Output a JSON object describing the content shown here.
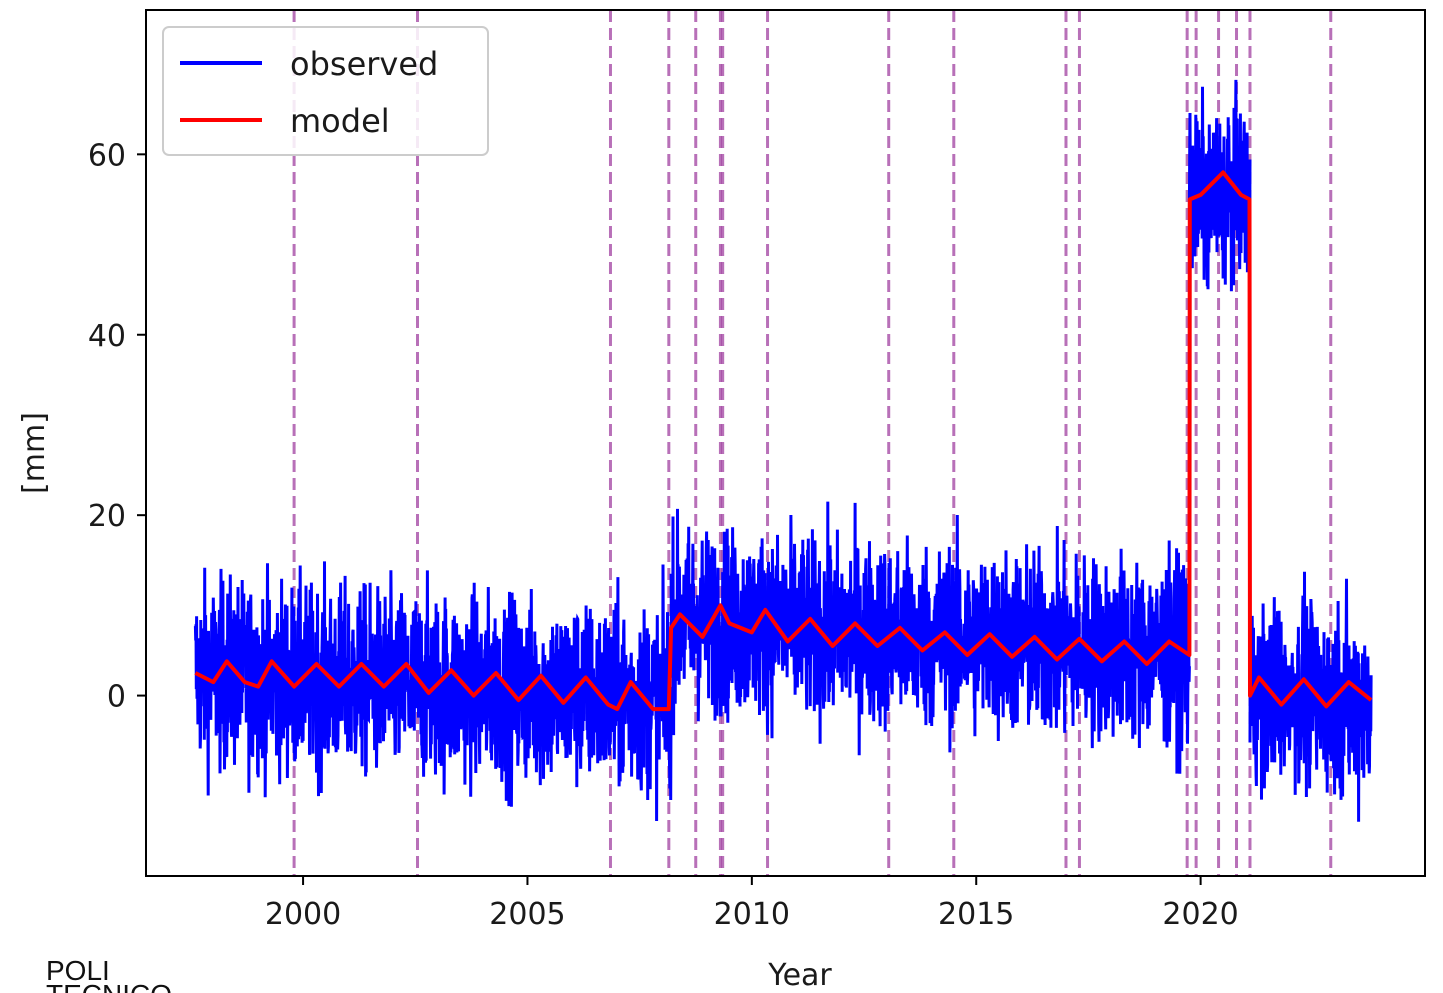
{
  "chart_data": {
    "type": "line",
    "title": "",
    "xlabel": "Year",
    "ylabel": "[mm]",
    "xlim": [
      1996.5,
      2025.0
    ],
    "ylim": [
      -20,
      76
    ],
    "x_ticks": [
      "2000",
      "2005",
      "2010",
      "2015",
      "2020"
    ],
    "x_tick_values": [
      2000,
      2005,
      2010,
      2015,
      2020
    ],
    "y_ticks": [
      "0",
      "20",
      "40",
      "60"
    ],
    "y_tick_values": [
      0,
      20,
      40,
      60
    ],
    "grid": false,
    "legend_position": "top-left",
    "colors": {
      "observed": "#0000ff",
      "model": "#ff0000",
      "breaks": "#a040a0"
    },
    "series": [
      {
        "name": "observed",
        "style": "solid noisy line",
        "segments": [
          {
            "x_start": 1997.6,
            "x_end": 2008.2,
            "y_mean_start": 2.5,
            "y_mean_end": -0.5,
            "y_min": -14.5,
            "y_max": 18.0
          },
          {
            "x_start": 2008.2,
            "x_end": 2019.75,
            "y_mean_start": 8.5,
            "y_mean_end": 4.5,
            "y_min": -9.5,
            "y_max": 22.5
          },
          {
            "x_start": 2019.75,
            "x_end": 2021.1,
            "y_mean_start": 55.5,
            "y_mean_end": 55.0,
            "y_min": 43.0,
            "y_max": 72.0
          },
          {
            "x_start": 2021.1,
            "x_end": 2023.8,
            "y_mean_start": 0.5,
            "y_mean_end": -0.5,
            "y_min": -15.5,
            "y_max": 16.0
          }
        ]
      },
      {
        "name": "model",
        "style": "solid line",
        "x": [
          1997.6,
          1998.0,
          1998.3,
          1998.7,
          1999.0,
          1999.3,
          1999.8,
          2000.3,
          2000.8,
          2001.3,
          2001.8,
          2002.3,
          2002.8,
          2003.3,
          2003.8,
          2004.3,
          2004.8,
          2005.3,
          2005.8,
          2006.3,
          2006.8,
          2007.0,
          2007.3,
          2007.8,
          2008.15,
          2008.2,
          2008.4,
          2008.9,
          2009.3,
          2009.5,
          2010.0,
          2010.3,
          2010.8,
          2011.3,
          2011.8,
          2012.3,
          2012.8,
          2013.3,
          2013.8,
          2014.3,
          2014.8,
          2015.3,
          2015.8,
          2016.3,
          2016.8,
          2017.3,
          2017.8,
          2018.3,
          2018.8,
          2019.3,
          2019.75,
          2019.76,
          2020.0,
          2020.5,
          2020.9,
          2021.09,
          2021.1,
          2021.3,
          2021.8,
          2022.3,
          2022.8,
          2023.3,
          2023.8
        ],
        "y": [
          2.5,
          1.5,
          3.8,
          1.5,
          1.0,
          3.8,
          1.0,
          3.5,
          1.0,
          3.5,
          1.0,
          3.5,
          0.3,
          2.8,
          0.0,
          2.5,
          -0.5,
          2.2,
          -0.8,
          2.0,
          -1.0,
          -1.5,
          1.5,
          -1.5,
          -1.5,
          7.5,
          9.0,
          6.5,
          10.0,
          8.0,
          7.0,
          9.5,
          6.0,
          8.5,
          5.5,
          8.0,
          5.5,
          7.5,
          5.0,
          7.0,
          4.5,
          6.8,
          4.3,
          6.5,
          4.0,
          6.3,
          3.8,
          6.0,
          3.5,
          6.0,
          4.5,
          55.0,
          55.5,
          58.0,
          55.5,
          55.0,
          0.0,
          2.0,
          -1.0,
          1.8,
          -1.2,
          1.5,
          -0.5
        ]
      }
    ],
    "vertical_lines": {
      "name": "breaks",
      "style": "dashed",
      "x": [
        1999.8,
        2002.55,
        2006.85,
        2008.15,
        2008.75,
        2009.3,
        2009.35,
        2010.35,
        2013.05,
        2014.5,
        2017.0,
        2017.3,
        2019.7,
        2019.9,
        2020.4,
        2020.8,
        2021.1,
        2022.9
      ]
    }
  },
  "logo": {
    "line1": "POLI",
    "line2": "TECNICO"
  }
}
